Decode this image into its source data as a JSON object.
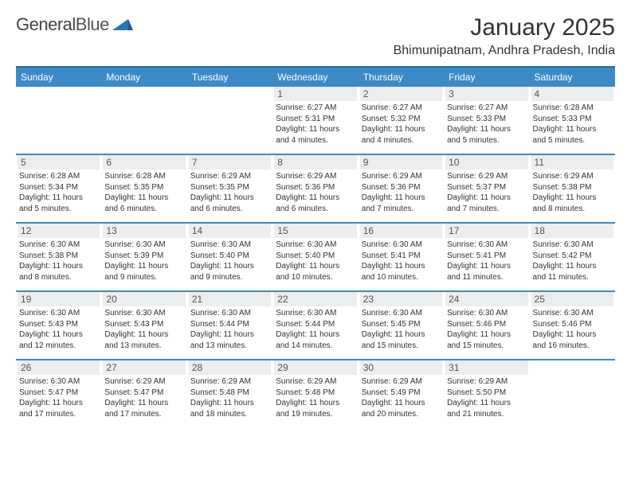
{
  "logo": {
    "general": "General",
    "blue": "Blue",
    "accent_color": "#2b73b6"
  },
  "header": {
    "month_title": "January 2025",
    "location": "Bhimunipatnam, Andhra Pradesh, India"
  },
  "colors": {
    "header_bar": "#3b8bc9",
    "week_divider": "#3b8bc9",
    "daynum_bg": "#eceded",
    "text": "#333333"
  },
  "day_headers": [
    "Sunday",
    "Monday",
    "Tuesday",
    "Wednesday",
    "Thursday",
    "Friday",
    "Saturday"
  ],
  "weeks": [
    [
      {
        "blank": true
      },
      {
        "blank": true
      },
      {
        "blank": true
      },
      {
        "n": "1",
        "sr": "Sunrise: 6:27 AM",
        "ss": "Sunset: 5:31 PM",
        "d1": "Daylight: 11 hours",
        "d2": "and 4 minutes."
      },
      {
        "n": "2",
        "sr": "Sunrise: 6:27 AM",
        "ss": "Sunset: 5:32 PM",
        "d1": "Daylight: 11 hours",
        "d2": "and 4 minutes."
      },
      {
        "n": "3",
        "sr": "Sunrise: 6:27 AM",
        "ss": "Sunset: 5:33 PM",
        "d1": "Daylight: 11 hours",
        "d2": "and 5 minutes."
      },
      {
        "n": "4",
        "sr": "Sunrise: 6:28 AM",
        "ss": "Sunset: 5:33 PM",
        "d1": "Daylight: 11 hours",
        "d2": "and 5 minutes."
      }
    ],
    [
      {
        "n": "5",
        "sr": "Sunrise: 6:28 AM",
        "ss": "Sunset: 5:34 PM",
        "d1": "Daylight: 11 hours",
        "d2": "and 5 minutes."
      },
      {
        "n": "6",
        "sr": "Sunrise: 6:28 AM",
        "ss": "Sunset: 5:35 PM",
        "d1": "Daylight: 11 hours",
        "d2": "and 6 minutes."
      },
      {
        "n": "7",
        "sr": "Sunrise: 6:29 AM",
        "ss": "Sunset: 5:35 PM",
        "d1": "Daylight: 11 hours",
        "d2": "and 6 minutes."
      },
      {
        "n": "8",
        "sr": "Sunrise: 6:29 AM",
        "ss": "Sunset: 5:36 PM",
        "d1": "Daylight: 11 hours",
        "d2": "and 6 minutes."
      },
      {
        "n": "9",
        "sr": "Sunrise: 6:29 AM",
        "ss": "Sunset: 5:36 PM",
        "d1": "Daylight: 11 hours",
        "d2": "and 7 minutes."
      },
      {
        "n": "10",
        "sr": "Sunrise: 6:29 AM",
        "ss": "Sunset: 5:37 PM",
        "d1": "Daylight: 11 hours",
        "d2": "and 7 minutes."
      },
      {
        "n": "11",
        "sr": "Sunrise: 6:29 AM",
        "ss": "Sunset: 5:38 PM",
        "d1": "Daylight: 11 hours",
        "d2": "and 8 minutes."
      }
    ],
    [
      {
        "n": "12",
        "sr": "Sunrise: 6:30 AM",
        "ss": "Sunset: 5:38 PM",
        "d1": "Daylight: 11 hours",
        "d2": "and 8 minutes."
      },
      {
        "n": "13",
        "sr": "Sunrise: 6:30 AM",
        "ss": "Sunset: 5:39 PM",
        "d1": "Daylight: 11 hours",
        "d2": "and 9 minutes."
      },
      {
        "n": "14",
        "sr": "Sunrise: 6:30 AM",
        "ss": "Sunset: 5:40 PM",
        "d1": "Daylight: 11 hours",
        "d2": "and 9 minutes."
      },
      {
        "n": "15",
        "sr": "Sunrise: 6:30 AM",
        "ss": "Sunset: 5:40 PM",
        "d1": "Daylight: 11 hours",
        "d2": "and 10 minutes."
      },
      {
        "n": "16",
        "sr": "Sunrise: 6:30 AM",
        "ss": "Sunset: 5:41 PM",
        "d1": "Daylight: 11 hours",
        "d2": "and 10 minutes."
      },
      {
        "n": "17",
        "sr": "Sunrise: 6:30 AM",
        "ss": "Sunset: 5:41 PM",
        "d1": "Daylight: 11 hours",
        "d2": "and 11 minutes."
      },
      {
        "n": "18",
        "sr": "Sunrise: 6:30 AM",
        "ss": "Sunset: 5:42 PM",
        "d1": "Daylight: 11 hours",
        "d2": "and 11 minutes."
      }
    ],
    [
      {
        "n": "19",
        "sr": "Sunrise: 6:30 AM",
        "ss": "Sunset: 5:43 PM",
        "d1": "Daylight: 11 hours",
        "d2": "and 12 minutes."
      },
      {
        "n": "20",
        "sr": "Sunrise: 6:30 AM",
        "ss": "Sunset: 5:43 PM",
        "d1": "Daylight: 11 hours",
        "d2": "and 13 minutes."
      },
      {
        "n": "21",
        "sr": "Sunrise: 6:30 AM",
        "ss": "Sunset: 5:44 PM",
        "d1": "Daylight: 11 hours",
        "d2": "and 13 minutes."
      },
      {
        "n": "22",
        "sr": "Sunrise: 6:30 AM",
        "ss": "Sunset: 5:44 PM",
        "d1": "Daylight: 11 hours",
        "d2": "and 14 minutes."
      },
      {
        "n": "23",
        "sr": "Sunrise: 6:30 AM",
        "ss": "Sunset: 5:45 PM",
        "d1": "Daylight: 11 hours",
        "d2": "and 15 minutes."
      },
      {
        "n": "24",
        "sr": "Sunrise: 6:30 AM",
        "ss": "Sunset: 5:46 PM",
        "d1": "Daylight: 11 hours",
        "d2": "and 15 minutes."
      },
      {
        "n": "25",
        "sr": "Sunrise: 6:30 AM",
        "ss": "Sunset: 5:46 PM",
        "d1": "Daylight: 11 hours",
        "d2": "and 16 minutes."
      }
    ],
    [
      {
        "n": "26",
        "sr": "Sunrise: 6:30 AM",
        "ss": "Sunset: 5:47 PM",
        "d1": "Daylight: 11 hours",
        "d2": "and 17 minutes."
      },
      {
        "n": "27",
        "sr": "Sunrise: 6:29 AM",
        "ss": "Sunset: 5:47 PM",
        "d1": "Daylight: 11 hours",
        "d2": "and 17 minutes."
      },
      {
        "n": "28",
        "sr": "Sunrise: 6:29 AM",
        "ss": "Sunset: 5:48 PM",
        "d1": "Daylight: 11 hours",
        "d2": "and 18 minutes."
      },
      {
        "n": "29",
        "sr": "Sunrise: 6:29 AM",
        "ss": "Sunset: 5:48 PM",
        "d1": "Daylight: 11 hours",
        "d2": "and 19 minutes."
      },
      {
        "n": "30",
        "sr": "Sunrise: 6:29 AM",
        "ss": "Sunset: 5:49 PM",
        "d1": "Daylight: 11 hours",
        "d2": "and 20 minutes."
      },
      {
        "n": "31",
        "sr": "Sunrise: 6:29 AM",
        "ss": "Sunset: 5:50 PM",
        "d1": "Daylight: 11 hours",
        "d2": "and 21 minutes."
      },
      {
        "blank": true
      }
    ]
  ]
}
